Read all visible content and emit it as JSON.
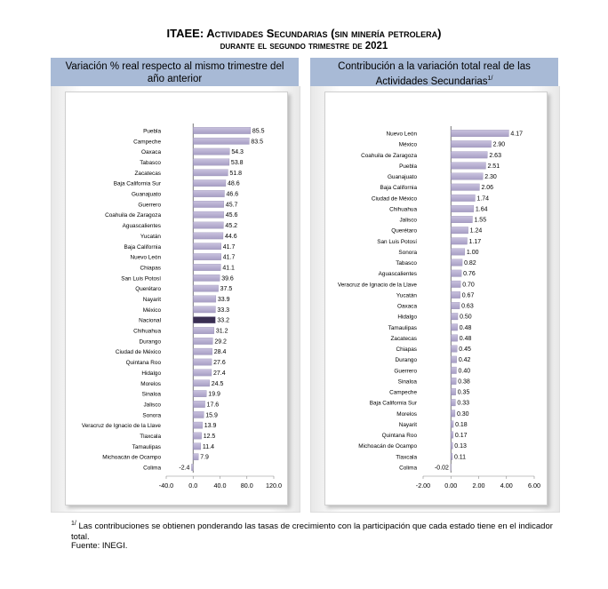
{
  "title_line1": "ITAEE: Actividades Secundarias (sin minería petrolera)",
  "title_line2": "durante el segundo trimestre de 2021",
  "left_header": "Variación % real respecto al mismo trimestre del año anterior",
  "right_header": "Contribución a la variación total real de las Actividades Secundarias",
  "right_header_sup": "1/",
  "footnote_marker": "1/",
  "footnote": "Las contribuciones se obtienen ponderando las tasas de crecimiento con la participación que cada estado tiene en el indicador total.",
  "source": "Fuente: INEGI.",
  "colors": {
    "bar": "#a79ec4",
    "bar_light": "#c9c2de",
    "highlight": "#3a2f52",
    "header_bg": "#a8bad6"
  },
  "chart_data": [
    {
      "type": "bar",
      "orientation": "horizontal",
      "highlight": "Nacional",
      "xlim": [
        -40,
        120
      ],
      "xticks": [
        "-40.0",
        "0.0",
        "40.0",
        "80.0",
        "120.0"
      ],
      "tick_values": [
        -40,
        0,
        40,
        80,
        120
      ],
      "decimals": 1,
      "categories": [
        "Puebla",
        "Campeche",
        "Oaxaca",
        "Tabasco",
        "Zacatecas",
        "Baja California Sur",
        "Guanajuato",
        "Guerrero",
        "Coahuila de Zaragoza",
        "Aguascalientes",
        "Yucatán",
        "Baja California",
        "Nuevo León",
        "Chiapas",
        "San Luis Potosí",
        "Querétaro",
        "Nayarit",
        "México",
        "Nacional",
        "Chihuahua",
        "Durango",
        "Ciudad de México",
        "Quintana Roo",
        "Hidalgo",
        "Morelos",
        "Sinaloa",
        "Jalisco",
        "Sonora",
        "Veracruz de Ignacio de la Llave",
        "Tlaxcala",
        "Tamaulipas",
        "Michoacán de Ocampo",
        "Colima"
      ],
      "values": [
        85.5,
        83.5,
        54.3,
        53.8,
        51.8,
        48.6,
        46.6,
        45.7,
        45.6,
        45.2,
        44.6,
        41.7,
        41.7,
        41.1,
        39.6,
        37.5,
        33.9,
        33.3,
        33.2,
        31.2,
        29.2,
        28.4,
        27.6,
        27.4,
        24.5,
        19.9,
        17.6,
        15.9,
        13.9,
        12.5,
        11.4,
        7.9,
        -2.4
      ]
    },
    {
      "type": "bar",
      "orientation": "horizontal",
      "xlim": [
        -2,
        6
      ],
      "xticks": [
        "-2.00",
        "0.00",
        "2.00",
        "4.00",
        "6.00"
      ],
      "tick_values": [
        -2,
        0,
        2,
        4,
        6
      ],
      "decimals": 2,
      "categories": [
        "Nuevo León",
        "México",
        "Coahuila de Zaragoza",
        "Puebla",
        "Guanajuato",
        "Baja California",
        "Ciudad de México",
        "Chihuahua",
        "Jalisco",
        "Querétaro",
        "San Luis Potosí",
        "Sonora",
        "Tabasco",
        "Aguascalientes",
        "Veracruz de Ignacio de la Llave",
        "Yucatán",
        "Oaxaca",
        "Hidalgo",
        "Tamaulipas",
        "Zacatecas",
        "Chiapas",
        "Durango",
        "Guerrero",
        "Sinaloa",
        "Campeche",
        "Baja California Sur",
        "Morelos",
        "Nayarit",
        "Quintana Roo",
        "Michoacán de Ocampo",
        "Tlaxcala",
        "Colima"
      ],
      "values": [
        4.17,
        2.9,
        2.63,
        2.51,
        2.3,
        2.06,
        1.74,
        1.64,
        1.55,
        1.24,
        1.17,
        1.0,
        0.82,
        0.76,
        0.7,
        0.67,
        0.63,
        0.5,
        0.48,
        0.48,
        0.45,
        0.42,
        0.4,
        0.38,
        0.35,
        0.33,
        0.3,
        0.18,
        0.17,
        0.13,
        0.11,
        -0.02
      ]
    }
  ]
}
